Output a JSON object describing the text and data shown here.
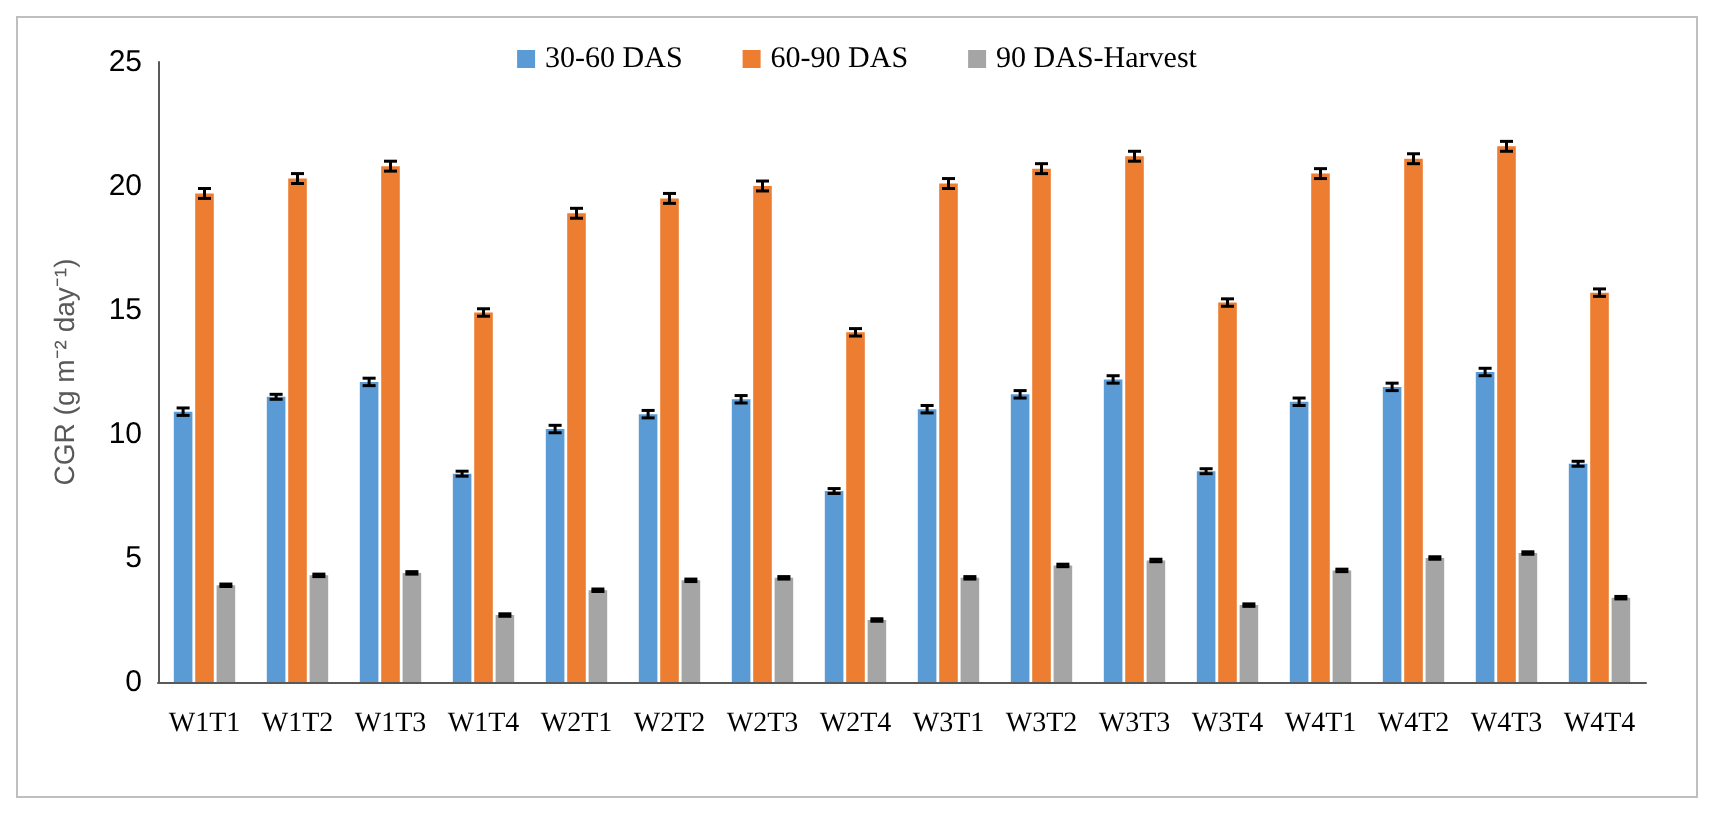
{
  "chart_data": {
    "type": "bar",
    "ylabel": "CGR (g m⁻² day⁻¹)",
    "categories": [
      "W1T1",
      "W1T2",
      "W1T3",
      "W1T4",
      "W2T1",
      "W2T2",
      "W2T3",
      "W2T4",
      "W3T1",
      "W3T2",
      "W3T3",
      "W3T4",
      "W4T1",
      "W4T2",
      "W4T3",
      "W4T4"
    ],
    "series": [
      {
        "name": "30-60 DAS",
        "color": "#5b9bd5",
        "values": [
          10.9,
          11.5,
          12.1,
          8.4,
          10.2,
          10.8,
          11.4,
          7.7,
          11.0,
          11.6,
          12.2,
          8.5,
          11.3,
          11.9,
          12.5,
          8.8
        ],
        "errors": [
          0.15,
          0.1,
          0.15,
          0.1,
          0.15,
          0.15,
          0.15,
          0.1,
          0.15,
          0.15,
          0.15,
          0.1,
          0.15,
          0.15,
          0.15,
          0.1
        ]
      },
      {
        "name": "60-90 DAS",
        "color": "#ed7d31",
        "values": [
          19.7,
          20.3,
          20.8,
          14.9,
          18.9,
          19.5,
          20.0,
          14.1,
          20.1,
          20.7,
          21.2,
          15.3,
          20.5,
          21.1,
          21.6,
          15.7
        ],
        "errors": [
          0.2,
          0.2,
          0.2,
          0.15,
          0.2,
          0.2,
          0.2,
          0.15,
          0.2,
          0.2,
          0.2,
          0.15,
          0.2,
          0.2,
          0.2,
          0.15
        ]
      },
      {
        "name": "90 DAS-Harvest",
        "color": "#a5a5a5",
        "values": [
          3.9,
          4.3,
          4.4,
          2.7,
          3.7,
          4.1,
          4.2,
          2.5,
          4.2,
          4.7,
          4.9,
          3.1,
          4.5,
          5.0,
          5.2,
          3.4
        ],
        "errors": [
          0.05,
          0.05,
          0.05,
          0.05,
          0.05,
          0.05,
          0.05,
          0.05,
          0.05,
          0.05,
          0.05,
          0.05,
          0.05,
          0.05,
          0.05,
          0.05
        ]
      }
    ],
    "ylim": [
      0,
      25
    ],
    "yticks": [
      0,
      5,
      10,
      15,
      20,
      25
    ],
    "grid": false,
    "legend": "top"
  }
}
